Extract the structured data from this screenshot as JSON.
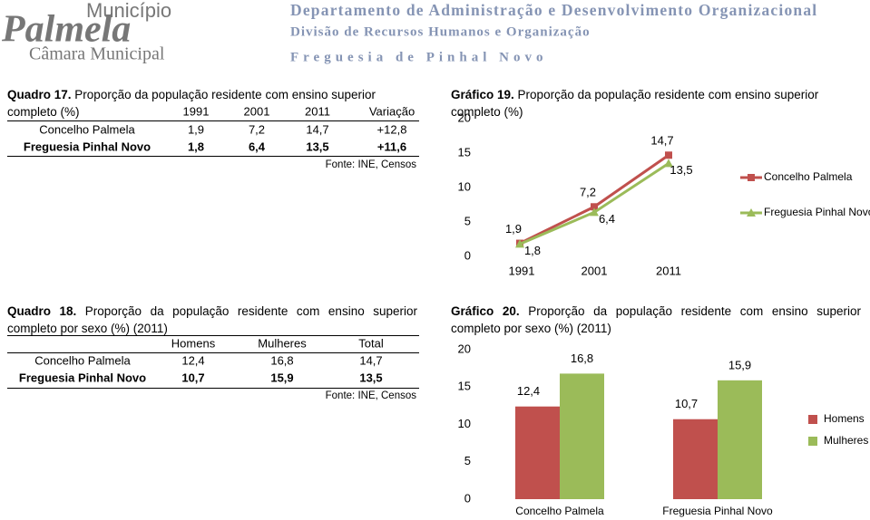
{
  "header": {
    "municipio": "Município",
    "palmela": "Palmela",
    "camara": "Câmara Municipal",
    "departamento": "Departamento de Administração e Desenvolvimento Organizacional",
    "divisao": "Divisão de Recursos Humanos e Organização",
    "freguesia": "Freguesia de Pinhal Novo"
  },
  "quadro17": {
    "label": "Quadro 17.",
    "title": "Proporção da população residente com ensino superior completo (%)",
    "columns": [
      "1991",
      "2001",
      "2011",
      "Variação"
    ],
    "rows": [
      [
        "Concelho Palmela",
        "1,9",
        "7,2",
        "14,7",
        "+12,8"
      ],
      [
        "Freguesia Pinhal Novo",
        "1,8",
        "6,4",
        "13,5",
        "+11,6"
      ]
    ],
    "source": "Fonte: INE, Censos"
  },
  "quadro18": {
    "label": "Quadro 18.",
    "title": "Proporção da população residente com ensino superior completo por sexo (%) (2011)",
    "columns": [
      "Homens",
      "Mulheres",
      "Total"
    ],
    "rows": [
      [
        "Concelho Palmela",
        "12,4",
        "16,8",
        "14,7"
      ],
      [
        "Freguesia Pinhal Novo",
        "10,7",
        "15,9",
        "13,5"
      ]
    ],
    "source": "Fonte: INE, Censos"
  },
  "chart_data": [
    {
      "type": "line",
      "label": "Gráfico 19.",
      "title": "Proporção da população residente com ensino superior completo (%)",
      "categories": [
        "1991",
        "2001",
        "2011"
      ],
      "series": [
        {
          "name": "Concelho Palmela",
          "color": "#c0504d",
          "values": [
            1.9,
            7.2,
            14.7
          ],
          "value_labels": [
            "1,9",
            "7,2",
            "14,7"
          ]
        },
        {
          "name": "Freguesia Pinhal Novo",
          "color": "#9bbb59",
          "values": [
            1.8,
            6.4,
            13.5
          ],
          "value_labels": [
            "1,8",
            "6,4",
            "13,5"
          ]
        }
      ],
      "ylim": [
        0,
        20
      ],
      "yticks": [
        0,
        5,
        10,
        15,
        20
      ],
      "legend": "right"
    },
    {
      "type": "bar",
      "label": "Gráfico 20.",
      "title": "Proporção da população residente com ensino superior completo por sexo (%) (2011)",
      "categories": [
        "Concelho Palmela",
        "Freguesia Pinhal Novo"
      ],
      "series": [
        {
          "name": "Homens",
          "color": "#c0504d",
          "values": [
            12.4,
            10.7
          ],
          "value_labels": [
            "12,4",
            "10,7"
          ]
        },
        {
          "name": "Mulheres",
          "color": "#9bbb59",
          "values": [
            16.8,
            15.9
          ],
          "value_labels": [
            "16,8",
            "15,9"
          ]
        }
      ],
      "ylim": [
        0,
        20
      ],
      "yticks": [
        0,
        5,
        10,
        15,
        20
      ],
      "legend": "right"
    }
  ]
}
